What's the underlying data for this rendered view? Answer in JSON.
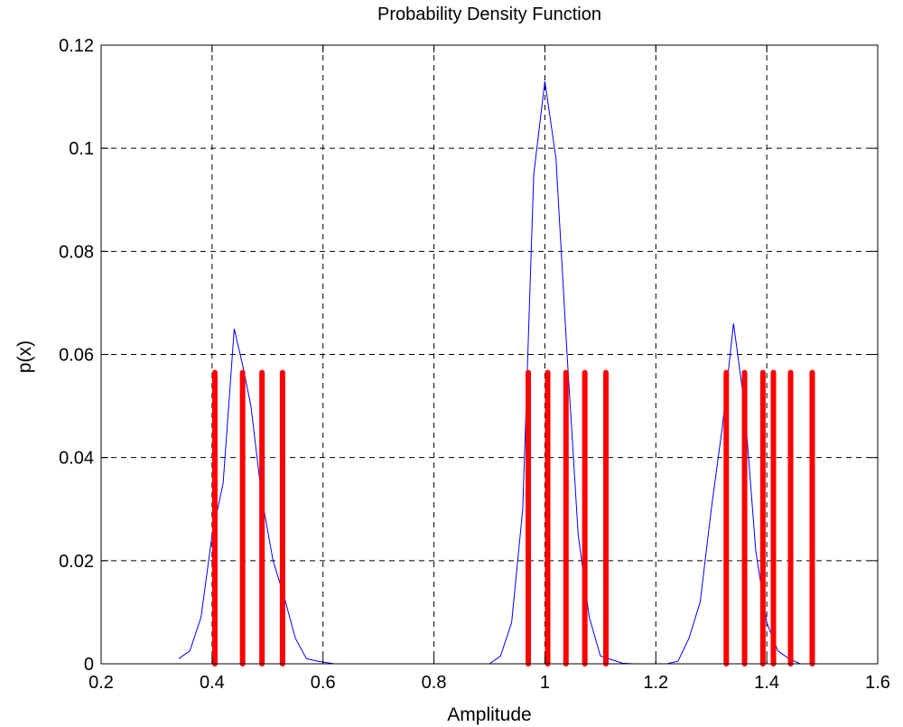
{
  "chart_data": {
    "type": "line",
    "title": "Probability Density Function",
    "xlabel": "Amplitude",
    "ylabel": "p(x)",
    "xlim": [
      0.2,
      1.6
    ],
    "ylim": [
      0,
      0.12
    ],
    "x_ticks": [
      "0.2",
      "0.4",
      "0.6",
      "0.8",
      "1",
      "1.2",
      "1.4",
      "1.6"
    ],
    "y_ticks": [
      "0",
      "0.02",
      "0.04",
      "0.06",
      "0.08",
      "0.1",
      "0.12"
    ],
    "grid": true,
    "series": [
      {
        "color": "#0000ff",
        "style": "line",
        "x": [
          0.34,
          0.36,
          0.38,
          0.4,
          0.42,
          0.44,
          0.455,
          0.47,
          0.49,
          0.51,
          0.53,
          0.55,
          0.57,
          0.59,
          0.62,
          0.66,
          0.7,
          0.75,
          0.8,
          0.85,
          0.88,
          0.9,
          0.92,
          0.94,
          0.96,
          0.98,
          1.0,
          1.02,
          1.04,
          1.06,
          1.08,
          1.1,
          1.12,
          1.14,
          1.16,
          1.18,
          1.2,
          1.22,
          1.24,
          1.26,
          1.28,
          1.3,
          1.32,
          1.34,
          1.36,
          1.38,
          1.4,
          1.42,
          1.44,
          1.46,
          1.48,
          1.5,
          1.52
        ],
        "y": [
          0.001,
          0.0025,
          0.009,
          0.025,
          0.035,
          0.065,
          0.058,
          0.05,
          0.032,
          0.02,
          0.013,
          0.005,
          0.001,
          0.0005,
          0.0,
          0.0,
          0.0,
          0.0,
          0.0,
          0.0,
          0.0,
          0.0,
          0.0015,
          0.008,
          0.03,
          0.095,
          0.113,
          0.098,
          0.06,
          0.025,
          0.009,
          0.0015,
          0.0008,
          0.0001,
          0.0,
          0.0,
          0.0,
          0.0,
          0.0005,
          0.005,
          0.012,
          0.03,
          0.046,
          0.066,
          0.05,
          0.022,
          0.008,
          0.0025,
          0.001,
          0.0,
          0.0,
          0.0,
          0.0
        ]
      },
      {
        "color": "#ff0000",
        "style": "stem",
        "x": [
          0.405,
          0.455,
          0.49,
          0.527,
          0.97,
          1.005,
          1.038,
          1.072,
          1.11,
          1.327,
          1.36,
          1.393,
          1.412,
          1.443,
          1.482
        ],
        "y": [
          0.0565,
          0.0565,
          0.0565,
          0.0565,
          0.0565,
          0.0565,
          0.0565,
          0.0565,
          0.0565,
          0.0565,
          0.0565,
          0.0565,
          0.0565,
          0.0565,
          0.0565
        ]
      }
    ]
  }
}
